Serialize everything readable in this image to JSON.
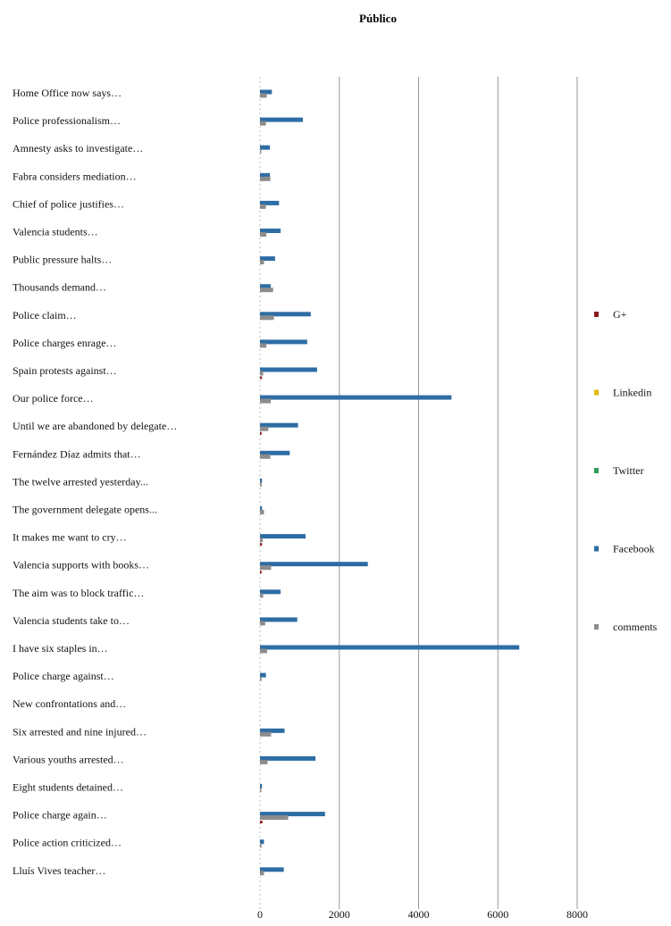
{
  "chart_data": {
    "type": "bar",
    "orientation": "horizontal",
    "title": "Público",
    "xlim": [
      0,
      8000
    ],
    "xticks": [
      0,
      2000,
      4000,
      6000,
      8000
    ],
    "grid": true,
    "legend_position": "right",
    "categories": [
      "Home Office now says…",
      "Police professionalism…",
      "Amnesty asks to investigate…",
      "Fabra considers mediation…",
      "Chief of police justifies…",
      "Valencia students…",
      "Public pressure halts…",
      "Thousands demand…",
      "Police claim…",
      "Police charges enrage…",
      "Spain protests against…",
      "Our police force…",
      "Until we are abandoned by delegate…",
      "Fernández Díaz admits that…",
      "The twelve arrested yesterday...",
      "The government delegate opens...",
      "It makes me want to cry…",
      "Valencia supports with books…",
      "The aim was to block traffic…",
      "Valencia students take to…",
      "I have six staples in…",
      "Police charge against…",
      "New confrontations and…",
      "Six arrested and nine injured…",
      "Various youths arrested…",
      "Eight students detained…",
      "Police charge again…",
      "Police action criticized…",
      "Lluís Vives teacher…"
    ],
    "series": [
      {
        "name": "G+",
        "color": "#8B1A1A",
        "values": [
          0,
          0,
          0,
          0,
          0,
          0,
          0,
          0,
          0,
          0,
          50,
          0,
          40,
          0,
          0,
          0,
          50,
          40,
          0,
          0,
          0,
          0,
          0,
          0,
          0,
          0,
          60,
          0,
          0
        ]
      },
      {
        "name": "Linkedin",
        "color": "#E6B800",
        "values": [
          0,
          0,
          0,
          0,
          0,
          0,
          0,
          0,
          0,
          0,
          0,
          0,
          0,
          0,
          0,
          0,
          0,
          0,
          0,
          0,
          0,
          0,
          0,
          0,
          0,
          0,
          0,
          0,
          0
        ]
      },
      {
        "name": "Twitter",
        "color": "#2E9E5B",
        "values": [
          10,
          10,
          10,
          10,
          10,
          10,
          10,
          10,
          10,
          10,
          10,
          10,
          10,
          10,
          10,
          10,
          10,
          10,
          10,
          10,
          10,
          10,
          0,
          10,
          10,
          10,
          10,
          10,
          10
        ]
      },
      {
        "name": "Facebook",
        "color": "#2E6DA4",
        "values": [
          300,
          1080,
          250,
          250,
          480,
          520,
          380,
          270,
          1280,
          1190,
          1440,
          4830,
          960,
          750,
          50,
          50,
          1150,
          2720,
          520,
          940,
          6540,
          150,
          0,
          620,
          1400,
          50,
          1640,
          100,
          600
        ]
      },
      {
        "name": "comments",
        "color": "#8C8C8C",
        "values": [
          170,
          150,
          20,
          260,
          150,
          160,
          100,
          330,
          350,
          160,
          80,
          270,
          210,
          260,
          40,
          100,
          70,
          280,
          80,
          130,
          180,
          40,
          0,
          280,
          190,
          20,
          710,
          40,
          100
        ]
      }
    ]
  }
}
